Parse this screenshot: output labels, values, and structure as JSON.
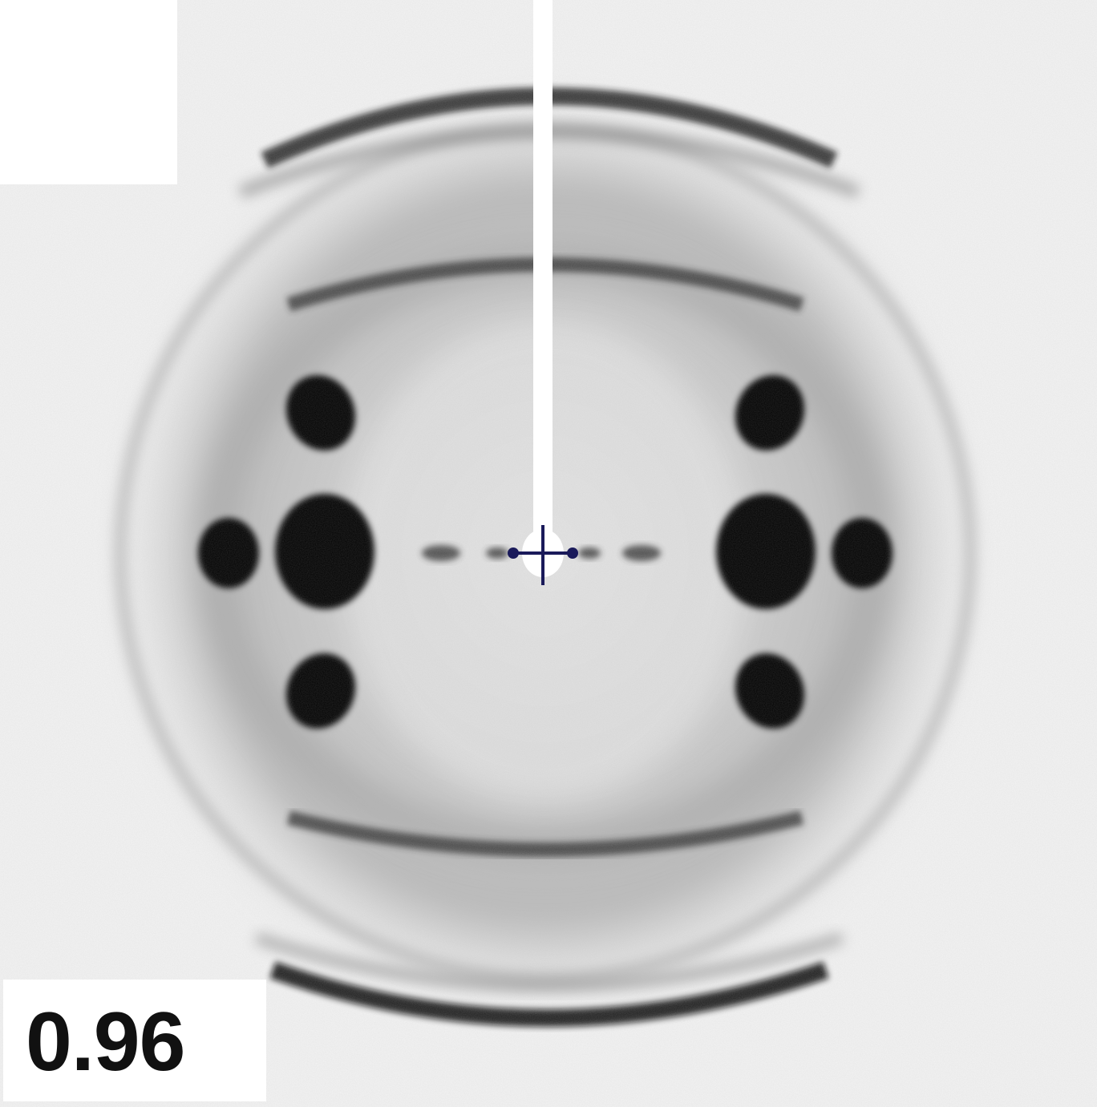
{
  "figure": {
    "label": "0.96"
  },
  "pattern": {
    "background_color": "#f4f4f4",
    "spot_color": "#0a0a0a",
    "beamstop_color": "#ffffff",
    "center_marker_color": "#1a1a5a",
    "center_marker": "crosshair-icon"
  }
}
